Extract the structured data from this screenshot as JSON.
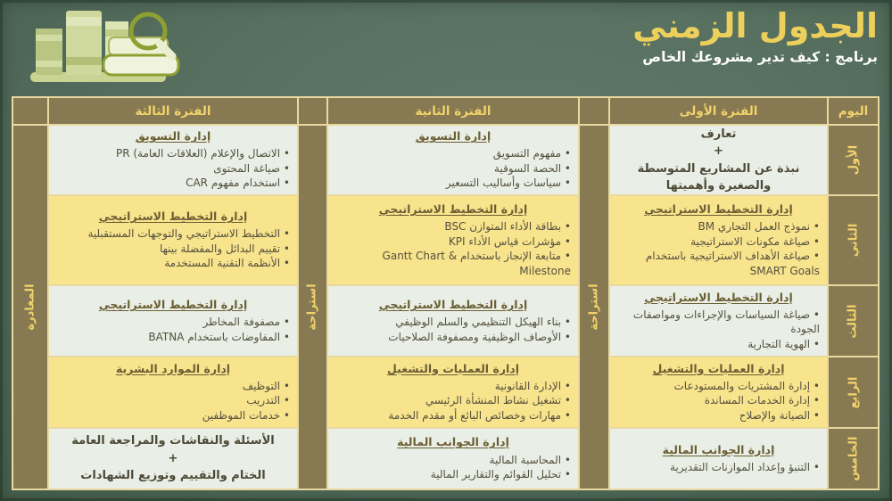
{
  "colors": {
    "background_green": "#577060",
    "table_border_cream": "#e9d9a1",
    "olive_cell": "#877a52",
    "light_cell": "#e9efe6",
    "yellow_cell": "#f8e48d",
    "title_yellow": "#edd05b",
    "label_yellow": "#f2d26b",
    "cell_title_brown": "#6b5e33",
    "cell_text": "#55503e",
    "subtitle_white": "#ffffff"
  },
  "header": {
    "title": "الجدول الزمني",
    "subtitle": "برنامج : كيف تدير مشروعك الخاص"
  },
  "logo": {
    "icon": "books-and-magnifier"
  },
  "table": {
    "day_header": "اليوم",
    "break_label": "استراحة",
    "departure_label": "المغادرة",
    "period_headers": [
      "الفترة الأولى",
      "الفترة الثانية",
      "الفترة الثالثة"
    ],
    "days": [
      "الأول",
      "الثاني",
      "الثالث",
      "الرابع",
      "الخامس"
    ],
    "rows": [
      {
        "day": "الأول",
        "periods": [
          {
            "lines": [
              "تعارف",
              "+",
              "نبذة عن المشاريع المتوسطة",
              "والصغيرة وأهميتها"
            ]
          },
          {
            "title": "إدارة التسويق",
            "bullets": [
              "مفهوم التسويق",
              "الحصة السوقية",
              "سياسات وأساليب التسعير"
            ]
          },
          {
            "title": "إدارة التسويق",
            "bullets": [
              "الاتصال والإعلام (العلاقات العامة) PR",
              "صياغة المحتوى",
              "استخدام مفهوم CAR"
            ]
          }
        ]
      },
      {
        "day": "الثاني",
        "periods": [
          {
            "title": "إدارة التخطيط الاستراتيجي",
            "bullets": [
              "نموذج العمل التجاري BM",
              "صياغة مكونات الاستراتيجية",
              "صياغة الأهداف الاستراتيجية باستخدام SMART Goals"
            ]
          },
          {
            "title": "إدارة التخطيط الاستراتيجي",
            "bullets": [
              "بطاقة الأداء المتوازن BSC",
              "مؤشرات قياس الأداء KPI",
              "متابعة الإنجاز باستخدام Gantt Chart & Milestone"
            ]
          },
          {
            "title": "إدارة التخطيط الاستراتيجي",
            "bullets": [
              "التخطيط الاستراتيجي والتوجهات المستقبلية",
              "تقييم البدائل والمفضلة بينها",
              "الأنظمة التقنية المستخدمة"
            ]
          }
        ]
      },
      {
        "day": "الثالث",
        "periods": [
          {
            "title": "إدارة التخطيط الاستراتيجي",
            "bullets": [
              "صياغة السياسات والإجراءات ومواصفات الجودة",
              "الهوية التجارية"
            ]
          },
          {
            "title": "إدارة التخطيط الاستراتيجي",
            "bullets": [
              "بناء الهيكل التنظيمي والسلم الوظيفي",
              "الأوصاف الوظيفية ومصفوفة الصلاحيات"
            ]
          },
          {
            "title": "إدارة التخطيط الاستراتيجي",
            "bullets": [
              "مصفوفة المخاطر",
              "المفاوضات باستخدام BATNA"
            ]
          }
        ]
      },
      {
        "day": "الرابع",
        "periods": [
          {
            "title": "إدارة العمليات والتشغيل",
            "bullets": [
              "إدارة المشتريات والمستودعات",
              "إدارة الخدمات المساندة",
              "الصيانة والإصلاح"
            ]
          },
          {
            "title": "إدارة العمليات والتشغيل",
            "bullets": [
              "الإدارة القانونية",
              "تشغيل نشاط المنشأة الرئيسي",
              "مهارات وخصائص البائع أو مقدم الخدمة"
            ]
          },
          {
            "title": "إدارة الموارد البشرية",
            "bullets": [
              "التوظيف",
              "التدريب",
              "خدمات الموظفين"
            ]
          }
        ]
      },
      {
        "day": "الخامس",
        "periods": [
          {
            "title": "إدارة الجوانب المالية",
            "bullets": [
              "التنبؤ وإعداد الموازنات التقديرية"
            ]
          },
          {
            "title": "إدارة الجوانب المالية",
            "bullets": [
              "المحاسبة المالية",
              "تحليل القوائم والتقارير المالية"
            ]
          },
          {
            "lines": [
              "الأسئلة والنقاشات والمراجعة العامة",
              "+",
              "الختام والتقييم وتوزيع الشهادات"
            ]
          }
        ]
      }
    ]
  }
}
